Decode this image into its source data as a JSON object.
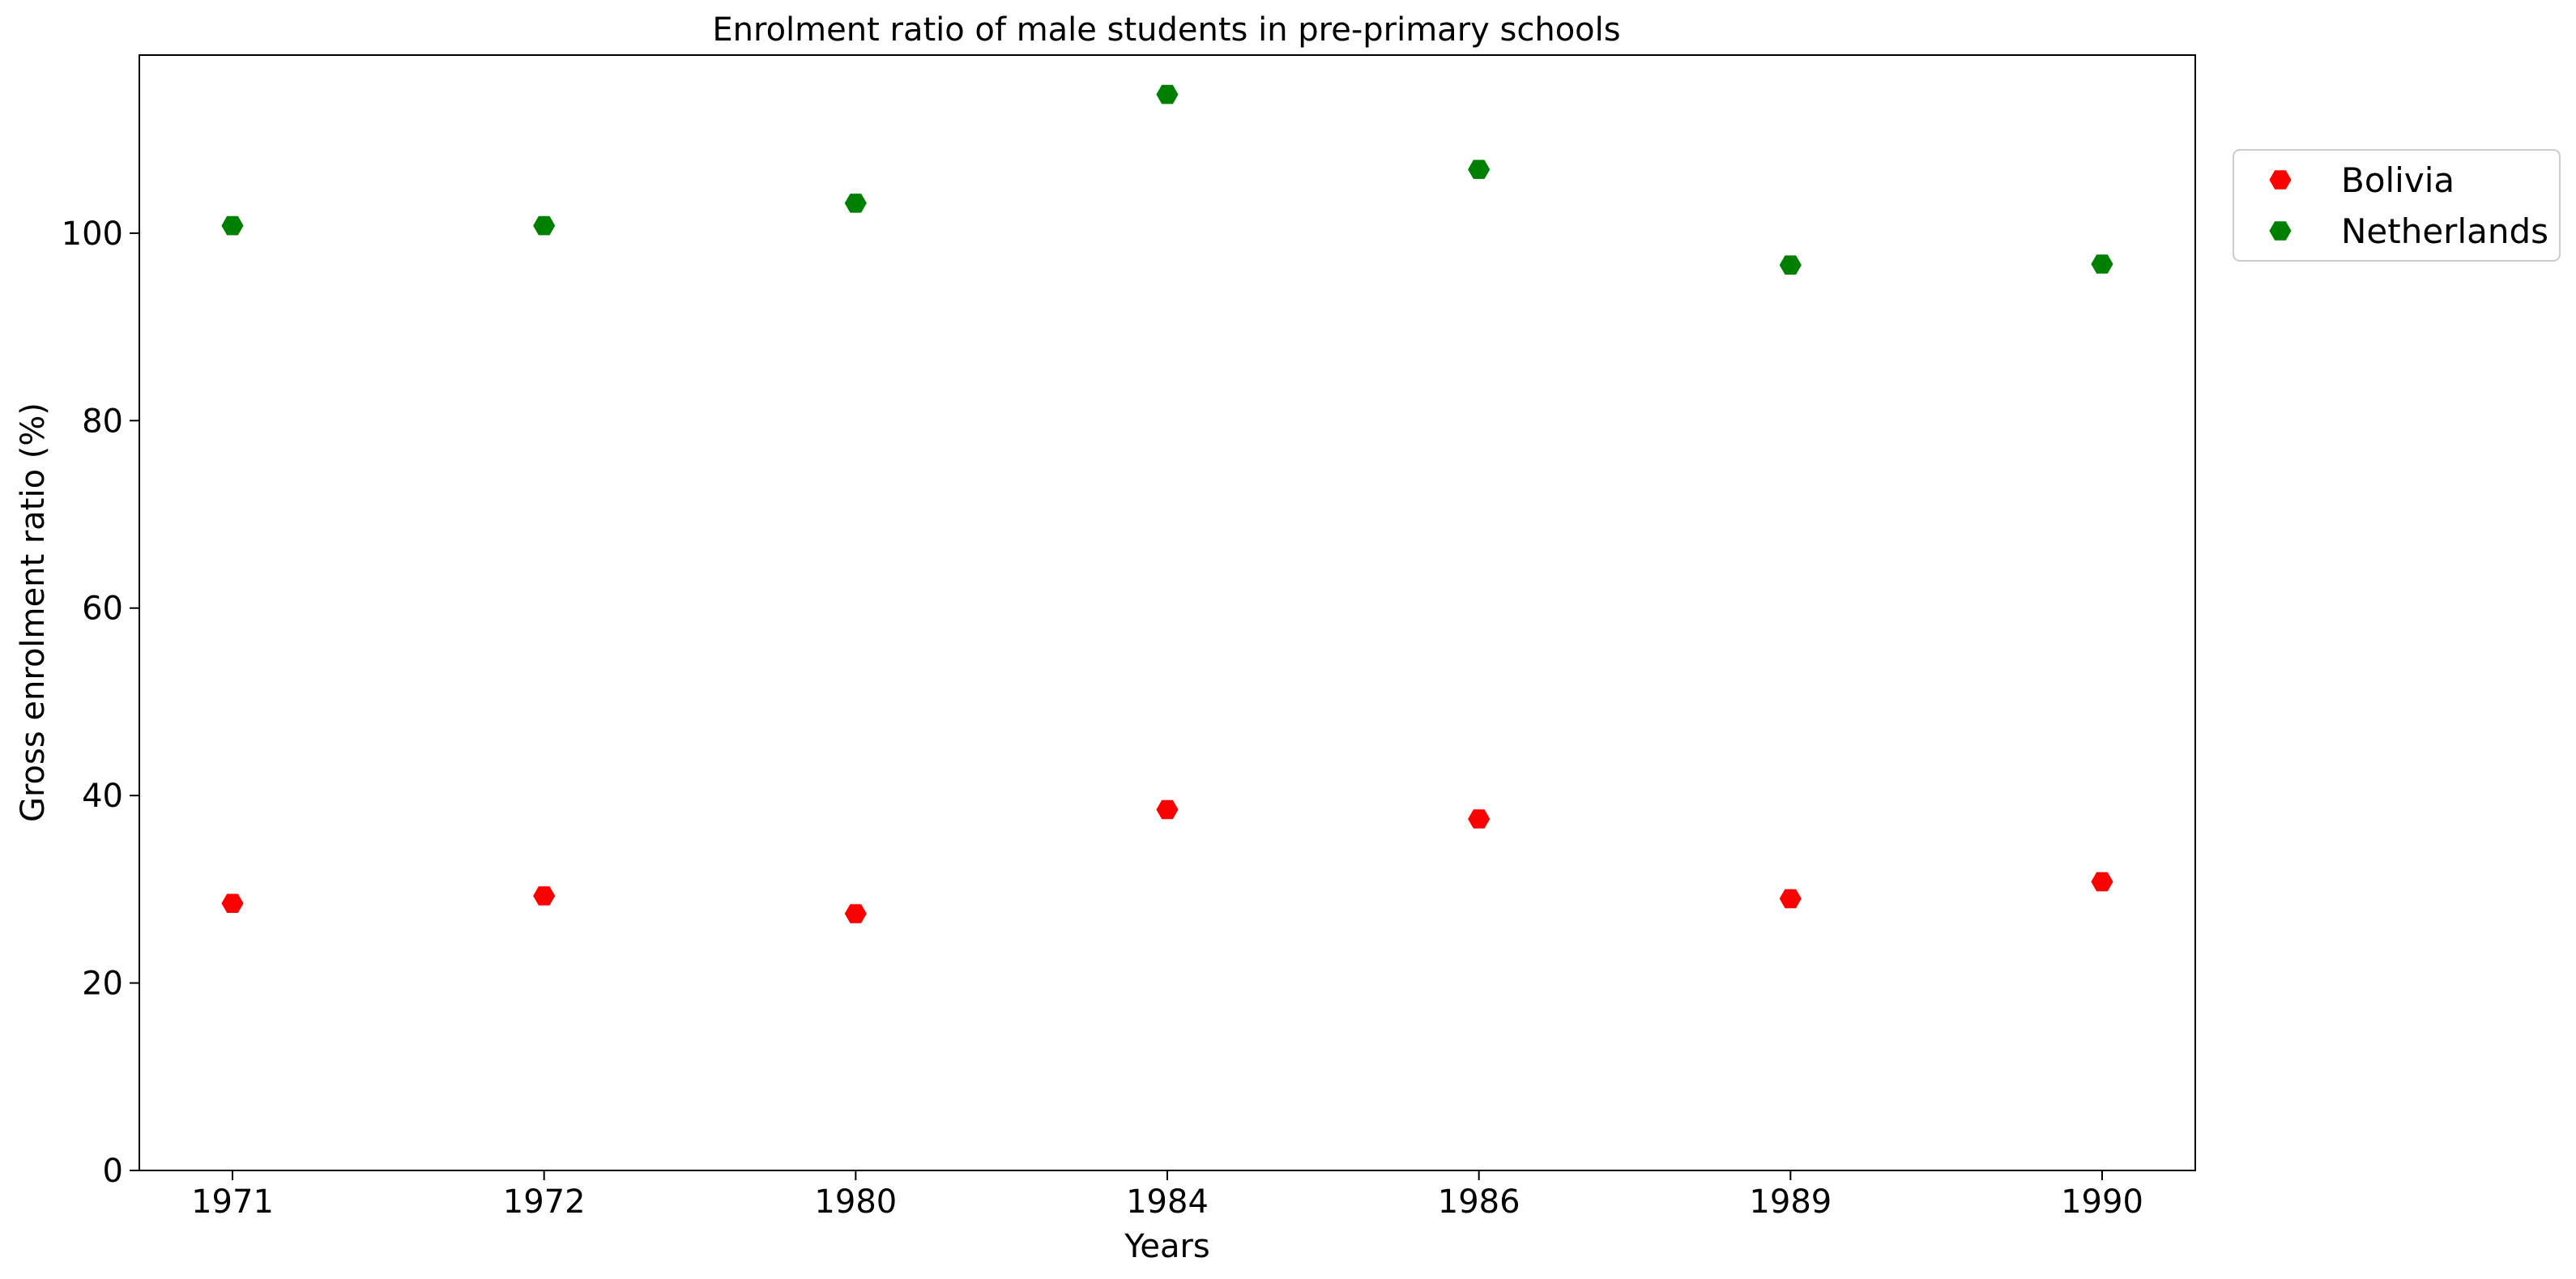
{
  "chart_data": {
    "type": "scatter",
    "title": "Enrolment ratio of male students in pre-primary schools",
    "xlabel": "Years",
    "ylabel": "Gross enrolment ratio (%)",
    "categories": [
      "1971",
      "1972",
      "1980",
      "1984",
      "1986",
      "1989",
      "1990"
    ],
    "ylim": [
      0,
      119
    ],
    "yticks": [
      0,
      20,
      40,
      60,
      80,
      100
    ],
    "grid": false,
    "legend_position": "outside top-right",
    "marker": "hexagon",
    "series": [
      {
        "name": "Bolivia",
        "color": "#ff0000",
        "values": [
          28.5,
          29.3,
          27.4,
          38.5,
          37.5,
          29.0,
          30.8
        ]
      },
      {
        "name": "Netherlands",
        "color": "#008000",
        "values": [
          100.8,
          100.8,
          103.2,
          114.8,
          106.8,
          96.6,
          96.7
        ]
      }
    ]
  }
}
